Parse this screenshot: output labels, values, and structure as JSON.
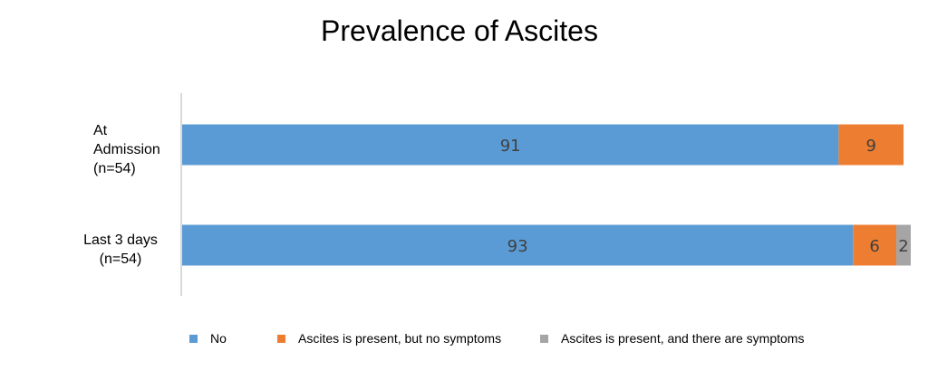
{
  "chart_data": {
    "type": "bar",
    "orientation": "horizontal",
    "stacked": true,
    "title": "Prevalence of Ascites",
    "categories": [
      [
        "At",
        "Admission",
        "(n=54)"
      ],
      [
        "Last 3 days",
        "(n=54)"
      ]
    ],
    "series": [
      {
        "name": "No",
        "color": "#5B9BD5",
        "values": [
          91,
          93
        ]
      },
      {
        "name": "Ascites is present, but no symptoms",
        "color": "#ED7D31",
        "values": [
          9,
          6
        ]
      },
      {
        "name": "Ascites is present, and there are symptoms",
        "color": "#A5A5A5",
        "values": [
          0,
          2
        ]
      }
    ],
    "xlim": [
      0,
      100
    ],
    "grid": false,
    "legend": "bottom",
    "data_labels": true
  }
}
